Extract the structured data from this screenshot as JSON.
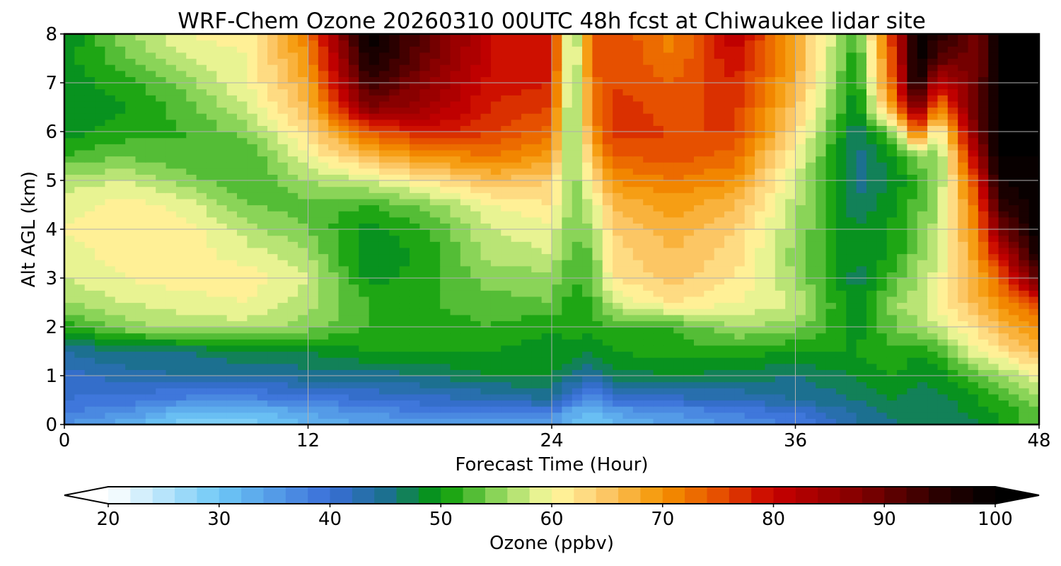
{
  "chart_data": {
    "type": "heatmap",
    "title": "WRF-Chem Ozone  20260310 00UTC 48h fcst at Chiwaukee lidar site",
    "xlabel": "Forecast Time (Hour)",
    "ylabel": "Alt AGL (km)",
    "xlim": [
      0,
      48
    ],
    "ylim": [
      0,
      8
    ],
    "xticks": [
      "0",
      "12",
      "24",
      "36",
      "48"
    ],
    "yticks": [
      "0",
      "1",
      "2",
      "3",
      "4",
      "5",
      "6",
      "7",
      "8"
    ],
    "grid": true,
    "x_hours": [
      0,
      3,
      6,
      9,
      12,
      15,
      18,
      21,
      24,
      25,
      26,
      27,
      30,
      33,
      36,
      39,
      41,
      42,
      43,
      45,
      46,
      48
    ],
    "y_km": [
      0,
      0.25,
      0.5,
      1,
      1.5,
      2,
      2.5,
      3,
      3.5,
      4,
      4.5,
      5,
      5.5,
      6,
      6.5,
      7,
      7.5,
      8
    ],
    "z_ppbv": [
      [
        36,
        33,
        28,
        29,
        32,
        34,
        35,
        35,
        34,
        32,
        30,
        32,
        34,
        36,
        38,
        44,
        46,
        46,
        46,
        48,
        50,
        54
      ],
      [
        38,
        36,
        31,
        31,
        34,
        36,
        38,
        38,
        38,
        33,
        31,
        34,
        36,
        38,
        40,
        44,
        47,
        46,
        46,
        49,
        50,
        54
      ],
      [
        40,
        39,
        37,
        37,
        38,
        40,
        41,
        42,
        44,
        38,
        36,
        40,
        41,
        42,
        44,
        46,
        48,
        47,
        47,
        50,
        51,
        55
      ],
      [
        41,
        43,
        44,
        44,
        45,
        45,
        46,
        48,
        48,
        46,
        44,
        47,
        48,
        47,
        46,
        48,
        50,
        48,
        49,
        53,
        55,
        60
      ],
      [
        44,
        46,
        46,
        48,
        48,
        50,
        50,
        50,
        49,
        49,
        48,
        50,
        51,
        51,
        50,
        50,
        52,
        50,
        52,
        60,
        62,
        66
      ],
      [
        51,
        55,
        57,
        57,
        55,
        52,
        51,
        52,
        50,
        51,
        51,
        52,
        52,
        56,
        55,
        49,
        54,
        56,
        58,
        63,
        66,
        70
      ],
      [
        56,
        58,
        59,
        60,
        57,
        52,
        52,
        53,
        54,
        51,
        52,
        58,
        62,
        60,
        58,
        48,
        56,
        57,
        60,
        67,
        70,
        76
      ],
      [
        58,
        60,
        61,
        61,
        58,
        49,
        51,
        55,
        55,
        52,
        53,
        62,
        65,
        62,
        56,
        47,
        53,
        56,
        59,
        68,
        73,
        92
      ],
      [
        59,
        61,
        61,
        59,
        56,
        48,
        51,
        57,
        58,
        53,
        54,
        63,
        66,
        63,
        55,
        48,
        51,
        55,
        58,
        70,
        80,
        98
      ],
      [
        60,
        62,
        61,
        57,
        54,
        49,
        52,
        58,
        59,
        54,
        56,
        64,
        67,
        64,
        56,
        48,
        51,
        54,
        57,
        72,
        88,
        100
      ],
      [
        59,
        61,
        59,
        54,
        53,
        52,
        55,
        60,
        62,
        55,
        58,
        66,
        69,
        66,
        57,
        46,
        50,
        53,
        56,
        74,
        94,
        100
      ],
      [
        57,
        58,
        55,
        52,
        56,
        58,
        62,
        66,
        64,
        54,
        62,
        70,
        72,
        70,
        58,
        45,
        49,
        52,
        55,
        78,
        98,
        100
      ],
      [
        52,
        54,
        52,
        52,
        60,
        66,
        70,
        72,
        69,
        53,
        66,
        74,
        75,
        73,
        60,
        45,
        50,
        55,
        54,
        84,
        100,
        100
      ],
      [
        49,
        51,
        52,
        55,
        63,
        74,
        79,
        76,
        73,
        52,
        70,
        77,
        76,
        76,
        63,
        46,
        56,
        75,
        58,
        90,
        100,
        100
      ],
      [
        48,
        50,
        53,
        58,
        66,
        88,
        84,
        78,
        76,
        52,
        72,
        77,
        75,
        77,
        65,
        48,
        72,
        90,
        70,
        92,
        100,
        100
      ],
      [
        49,
        51,
        55,
        60,
        68,
        94,
        86,
        79,
        78,
        52,
        73,
        76,
        74,
        78,
        67,
        49,
        77,
        100,
        80,
        90,
        100,
        100
      ],
      [
        49,
        54,
        58,
        60,
        70,
        98,
        89,
        80,
        79,
        53,
        74,
        76,
        72,
        80,
        68,
        50,
        79,
        100,
        92,
        88,
        100,
        100
      ],
      [
        48,
        55,
        60,
        61,
        72,
        100,
        90,
        80,
        80,
        52,
        75,
        76,
        71,
        82,
        68,
        52,
        80,
        100,
        96,
        88,
        100,
        100
      ]
    ],
    "colorbar": {
      "label": "Ozone  (ppbv)",
      "min": 20,
      "max": 100,
      "step": 2,
      "ticks": [
        "20",
        "30",
        "40",
        "50",
        "60",
        "70",
        "80",
        "90",
        "100"
      ],
      "extend": "both",
      "anchors": [
        {
          "v": 20,
          "c": "#ffffff"
        },
        {
          "v": 30,
          "c": "#6ec8f6"
        },
        {
          "v": 40,
          "c": "#3a6ed8"
        },
        {
          "v": 45,
          "c": "#1c7090"
        },
        {
          "v": 50,
          "c": "#039a03"
        },
        {
          "v": 55,
          "c": "#8ad458"
        },
        {
          "v": 60,
          "c": "#fffba0"
        },
        {
          "v": 64,
          "c": "#fdd078"
        },
        {
          "v": 70,
          "c": "#f59400"
        },
        {
          "v": 75,
          "c": "#e65000"
        },
        {
          "v": 80,
          "c": "#c80000"
        },
        {
          "v": 88,
          "c": "#800000"
        },
        {
          "v": 95,
          "c": "#2a0000"
        },
        {
          "v": 100,
          "c": "#000000"
        }
      ]
    }
  }
}
